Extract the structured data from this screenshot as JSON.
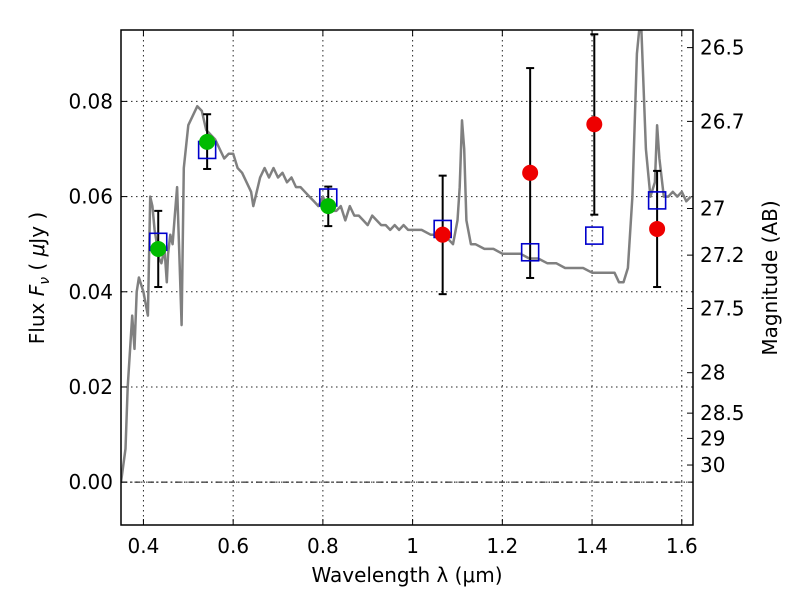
{
  "chart_data": {
    "type": "scatter",
    "xlabel": "Wavelength  λ (μm)",
    "ylabel": "Flux  F_ν  ( μJy )",
    "ylabel_right": "Magnitude (AB)",
    "xlim": [
      0.35,
      1.625
    ],
    "ylim": [
      -0.009,
      0.095
    ],
    "grid": true,
    "x_ticks": [
      0.4,
      0.6,
      0.8,
      1.0,
      1.2,
      1.4,
      1.6
    ],
    "x_tick_labels": [
      "0.4",
      "0.6",
      "0.8",
      "1",
      "1.2",
      "1.4",
      "1.6"
    ],
    "y_ticks": [
      0.0,
      0.02,
      0.04,
      0.06,
      0.08
    ],
    "y_tick_labels": [
      "0.00",
      "0.02",
      "0.04",
      "0.06",
      "0.08"
    ],
    "right_ticks": [
      {
        "flux": 0.0913,
        "label": "26.5"
      },
      {
        "flux": 0.0758,
        "label": "26.7"
      },
      {
        "flux": 0.0575,
        "label": "27"
      },
      {
        "flux": 0.0477,
        "label": "27.2"
      },
      {
        "flux": 0.0365,
        "label": "27.5"
      },
      {
        "flux": 0.023,
        "label": "28"
      },
      {
        "flux": 0.0145,
        "label": "28.5"
      },
      {
        "flux": 0.0092,
        "label": "29"
      },
      {
        "flux": 0.0036,
        "label": "30"
      }
    ],
    "zero_line": 0.0,
    "colors": {
      "sed": "#808080",
      "model_box": "#0000cc",
      "observed_green": "#00bb00",
      "observed_red": "#ee0000",
      "errorbar": "#000000"
    },
    "sed_curve": [
      [
        0.35,
        0.0
      ],
      [
        0.36,
        0.007
      ],
      [
        0.365,
        0.02
      ],
      [
        0.375,
        0.035
      ],
      [
        0.38,
        0.028
      ],
      [
        0.385,
        0.04
      ],
      [
        0.39,
        0.043
      ],
      [
        0.4,
        0.04
      ],
      [
        0.41,
        0.035
      ],
      [
        0.415,
        0.06
      ],
      [
        0.42,
        0.058
      ],
      [
        0.425,
        0.053
      ],
      [
        0.43,
        0.05
      ],
      [
        0.435,
        0.047
      ],
      [
        0.44,
        0.046
      ],
      [
        0.447,
        0.049
      ],
      [
        0.452,
        0.042
      ],
      [
        0.455,
        0.048
      ],
      [
        0.46,
        0.052
      ],
      [
        0.465,
        0.05
      ],
      [
        0.47,
        0.056
      ],
      [
        0.475,
        0.062
      ],
      [
        0.48,
        0.048
      ],
      [
        0.485,
        0.033
      ],
      [
        0.49,
        0.066
      ],
      [
        0.5,
        0.075
      ],
      [
        0.51,
        0.077
      ],
      [
        0.52,
        0.079
      ],
      [
        0.53,
        0.078
      ],
      [
        0.54,
        0.074
      ],
      [
        0.55,
        0.073
      ],
      [
        0.56,
        0.072
      ],
      [
        0.57,
        0.07
      ],
      [
        0.58,
        0.068
      ],
      [
        0.59,
        0.069
      ],
      [
        0.6,
        0.069
      ],
      [
        0.61,
        0.066
      ],
      [
        0.62,
        0.065
      ],
      [
        0.63,
        0.063
      ],
      [
        0.64,
        0.061
      ],
      [
        0.645,
        0.058
      ],
      [
        0.65,
        0.06
      ],
      [
        0.66,
        0.064
      ],
      [
        0.67,
        0.066
      ],
      [
        0.68,
        0.064
      ],
      [
        0.69,
        0.066
      ],
      [
        0.7,
        0.064
      ],
      [
        0.71,
        0.065
      ],
      [
        0.72,
        0.063
      ],
      [
        0.73,
        0.064
      ],
      [
        0.74,
        0.062
      ],
      [
        0.75,
        0.062
      ],
      [
        0.76,
        0.061
      ],
      [
        0.77,
        0.06
      ],
      [
        0.78,
        0.059
      ],
      [
        0.79,
        0.058
      ],
      [
        0.8,
        0.06
      ],
      [
        0.81,
        0.058
      ],
      [
        0.82,
        0.057
      ],
      [
        0.83,
        0.057
      ],
      [
        0.84,
        0.058
      ],
      [
        0.85,
        0.055
      ],
      [
        0.86,
        0.058
      ],
      [
        0.87,
        0.056
      ],
      [
        0.88,
        0.056
      ],
      [
        0.89,
        0.055
      ],
      [
        0.9,
        0.054
      ],
      [
        0.91,
        0.056
      ],
      [
        0.92,
        0.055
      ],
      [
        0.93,
        0.054
      ],
      [
        0.94,
        0.054
      ],
      [
        0.95,
        0.053
      ],
      [
        0.96,
        0.054
      ],
      [
        0.97,
        0.053
      ],
      [
        0.98,
        0.054
      ],
      [
        0.99,
        0.053
      ],
      [
        1.0,
        0.053
      ],
      [
        1.02,
        0.053
      ],
      [
        1.04,
        0.052
      ],
      [
        1.06,
        0.052
      ],
      [
        1.08,
        0.051
      ],
      [
        1.09,
        0.05
      ],
      [
        1.1,
        0.055
      ],
      [
        1.105,
        0.062
      ],
      [
        1.11,
        0.076
      ],
      [
        1.115,
        0.07
      ],
      [
        1.12,
        0.055
      ],
      [
        1.13,
        0.05
      ],
      [
        1.14,
        0.05
      ],
      [
        1.16,
        0.049
      ],
      [
        1.18,
        0.049
      ],
      [
        1.2,
        0.048
      ],
      [
        1.22,
        0.048
      ],
      [
        1.24,
        0.048
      ],
      [
        1.26,
        0.047
      ],
      [
        1.28,
        0.047
      ],
      [
        1.3,
        0.046
      ],
      [
        1.32,
        0.046
      ],
      [
        1.34,
        0.045
      ],
      [
        1.36,
        0.045
      ],
      [
        1.38,
        0.045
      ],
      [
        1.4,
        0.044
      ],
      [
        1.42,
        0.044
      ],
      [
        1.44,
        0.044
      ],
      [
        1.45,
        0.044
      ],
      [
        1.46,
        0.042
      ],
      [
        1.47,
        0.042
      ],
      [
        1.48,
        0.045
      ],
      [
        1.49,
        0.06
      ],
      [
        1.5,
        0.09
      ],
      [
        1.505,
        0.095
      ],
      [
        1.51,
        0.095
      ],
      [
        1.52,
        0.07
      ],
      [
        1.53,
        0.06
      ],
      [
        1.54,
        0.063
      ],
      [
        1.545,
        0.075
      ],
      [
        1.55,
        0.068
      ],
      [
        1.56,
        0.06
      ],
      [
        1.57,
        0.06
      ],
      [
        1.58,
        0.061
      ],
      [
        1.59,
        0.06
      ],
      [
        1.6,
        0.061
      ],
      [
        1.61,
        0.059
      ],
      [
        1.62,
        0.06
      ]
    ],
    "model_points": [
      {
        "x": 0.433,
        "y": 0.0505
      },
      {
        "x": 0.542,
        "y": 0.0698
      },
      {
        "x": 0.812,
        "y": 0.0598
      },
      {
        "x": 1.067,
        "y": 0.0532
      },
      {
        "x": 1.262,
        "y": 0.0483
      },
      {
        "x": 1.405,
        "y": 0.0518
      },
      {
        "x": 1.545,
        "y": 0.0592
      }
    ],
    "observed_points": [
      {
        "x": 0.433,
        "y": 0.049,
        "yerr_low": 0.041,
        "yerr_high": 0.057,
        "color": "green"
      },
      {
        "x": 0.542,
        "y": 0.0715,
        "yerr_low": 0.0658,
        "yerr_high": 0.0773,
        "color": "green"
      },
      {
        "x": 0.812,
        "y": 0.058,
        "yerr_low": 0.0538,
        "yerr_high": 0.0621,
        "color": "green"
      },
      {
        "x": 1.067,
        "y": 0.052,
        "yerr_low": 0.0395,
        "yerr_high": 0.0644,
        "color": "red"
      },
      {
        "x": 1.262,
        "y": 0.065,
        "yerr_low": 0.0429,
        "yerr_high": 0.087,
        "color": "red"
      },
      {
        "x": 1.405,
        "y": 0.0752,
        "yerr_low": 0.0562,
        "yerr_high": 0.0941,
        "color": "red"
      },
      {
        "x": 1.545,
        "y": 0.0532,
        "yerr_low": 0.041,
        "yerr_high": 0.0654,
        "color": "red"
      }
    ]
  }
}
